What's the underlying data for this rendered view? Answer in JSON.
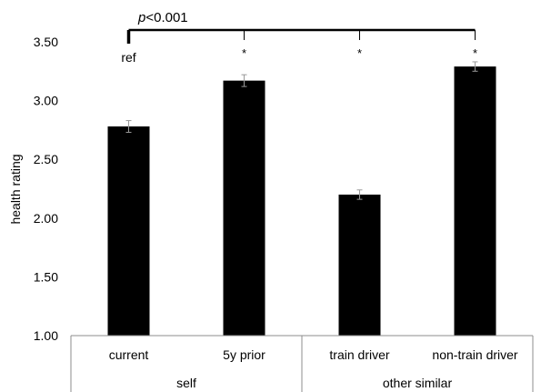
{
  "chart_data": {
    "type": "bar",
    "ylabel": "health rating",
    "ylim": [
      1.0,
      3.5
    ],
    "yticks": [
      "1.00",
      "1.50",
      "2.00",
      "2.50",
      "3.00",
      "3.50"
    ],
    "categories": [
      "current",
      "5y prior",
      "train driver",
      "non-train driver"
    ],
    "groups": [
      {
        "label": "self",
        "categories": [
          "current",
          "5y prior"
        ]
      },
      {
        "label": "other similar",
        "categories": [
          "train driver",
          "non-train driver"
        ]
      }
    ],
    "values": [
      2.78,
      3.17,
      2.2,
      3.29
    ],
    "errors": [
      0.05,
      0.05,
      0.04,
      0.04
    ],
    "bar_annotations": [
      "ref",
      "*",
      "*",
      "*"
    ],
    "significance_label": "p<0.001",
    "bar_color": "#000000",
    "grid": false
  }
}
